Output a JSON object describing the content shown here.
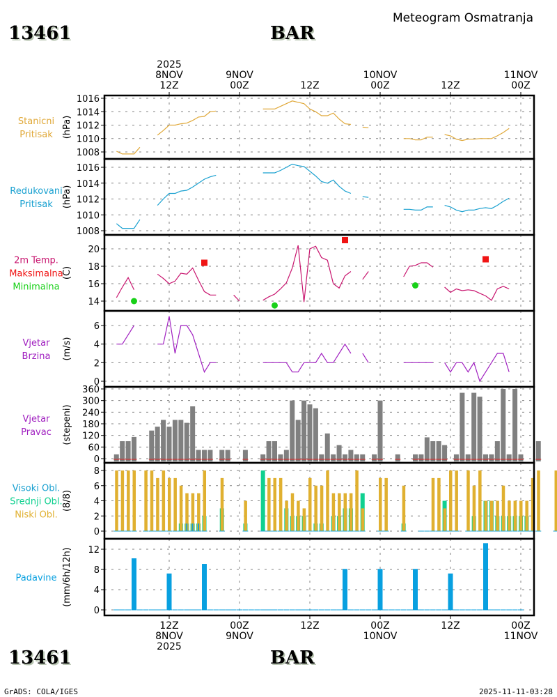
{
  "header": {
    "station_id": "13461",
    "station_name": "BAR",
    "title": "Meteogram Osmatranja"
  },
  "footer": {
    "station_id": "13461",
    "station_name": "BAR",
    "credit": "GrADS: COLA/IGES",
    "timestamp": "2025-11-11-03:28"
  },
  "time_axis": {
    "top_labels": [
      {
        "hour": 12,
        "lines": [
          "2025",
          "8NOV",
          "12Z"
        ]
      },
      {
        "hour": 24,
        "lines": [
          "9NOV",
          "00Z"
        ]
      },
      {
        "hour": 36,
        "lines": [
          "12Z"
        ]
      },
      {
        "hour": 48,
        "lines": [
          "10NOV",
          "00Z"
        ]
      },
      {
        "hour": 60,
        "lines": [
          "12Z"
        ]
      },
      {
        "hour": 72,
        "lines": [
          "11NOV",
          "00Z"
        ]
      }
    ],
    "bottom_labels": [
      {
        "hour": 12,
        "lines": [
          "12Z",
          "8NOV",
          "2025"
        ]
      },
      {
        "hour": 24,
        "lines": [
          "00Z",
          "9NOV"
        ]
      },
      {
        "hour": 36,
        "lines": [
          "12Z"
        ]
      },
      {
        "hour": 48,
        "lines": [
          "00Z",
          "10NOV"
        ]
      },
      {
        "hour": 60,
        "lines": [
          "12Z"
        ]
      },
      {
        "hour": 72,
        "lines": [
          "00Z",
          "11NOV"
        ]
      }
    ]
  },
  "colors": {
    "station_pressure": "#e0a838",
    "reduced_pressure": "#18a0d0",
    "temperature": "#c8146e",
    "tmax": "#f01414",
    "tmin": "#18d018",
    "wind_speed": "#a020c0",
    "wind_dir_bar": "#808080",
    "wind_dir_zero": "#e02020",
    "cloud_high": "#18a0d0",
    "cloud_mid": "#10d090",
    "cloud_low": "#e0b030",
    "precip": "#08a0e0"
  },
  "chart_data": [
    {
      "type": "line",
      "id": "station_pressure",
      "title_lines": [
        "Stanicni",
        "Pritisak"
      ],
      "ylabel": "(hPa)",
      "yticks": [
        1008,
        1010,
        1012,
        1014,
        1016
      ],
      "ylim": [
        1007.3,
        1016.5
      ],
      "x_hours_start": 3,
      "values": [
        1008.1,
        1007.7,
        1007.7,
        1007.7,
        1008.7,
        null,
        null,
        1010.5,
        1011.2,
        1012.0,
        1012.0,
        1012.2,
        1012.3,
        1012.7,
        1013.2,
        1013.3,
        1014.0,
        1014.1,
        null,
        null,
        1015.0,
        null,
        null,
        null,
        null,
        1014.4,
        1014.4,
        1014.4,
        1014.8,
        1015.2,
        1015.6,
        1015.4,
        1015.2,
        1014.4,
        1014.0,
        1013.4,
        1013.4,
        1013.8,
        1012.9,
        1012.2,
        1012.1,
        null,
        1011.7,
        1011.6,
        null,
        null,
        null,
        null,
        null,
        1010.0,
        1010.0,
        1009.8,
        1009.8,
        1010.2,
        1010.2,
        null,
        1010.6,
        1010.4,
        1009.9,
        1009.7,
        1009.9,
        1009.9,
        1010.0,
        1010.0,
        1010.0,
        1010.4,
        1010.9,
        1011.5
      ]
    },
    {
      "type": "line",
      "id": "reduced_pressure",
      "title_lines": [
        "Redukovani",
        "Pritisak"
      ],
      "ylabel": "(hPa)",
      "yticks": [
        1008,
        1010,
        1012,
        1014,
        1016
      ],
      "ylim": [
        1007.5,
        1016.8
      ],
      "x_hours_start": 3,
      "values": [
        1008.9,
        1008.3,
        1008.3,
        1008.3,
        1009.4,
        null,
        null,
        1011.2,
        1012.0,
        1012.7,
        1012.7,
        1013.0,
        1013.1,
        1013.5,
        1014.0,
        1014.5,
        1014.8,
        1015.0,
        null,
        null,
        1015.8,
        null,
        null,
        null,
        null,
        1015.3,
        1015.3,
        1015.3,
        1015.6,
        1016.0,
        1016.4,
        1016.2,
        1016.1,
        1015.5,
        1014.9,
        1014.2,
        1014.0,
        1014.4,
        1013.6,
        1013.0,
        1012.7,
        null,
        1012.3,
        1012.2,
        null,
        null,
        null,
        null,
        null,
        1010.7,
        1010.7,
        1010.6,
        1010.6,
        1011.0,
        1011.0,
        null,
        1011.2,
        1011.0,
        1010.6,
        1010.4,
        1010.6,
        1010.6,
        1010.8,
        1010.9,
        1010.8,
        1011.2,
        1011.7,
        1012.1
      ]
    },
    {
      "type": "line",
      "id": "temperature",
      "title_lines": [
        "2m Temp.",
        "Maksimalna",
        "Minimalna"
      ],
      "ylabel": "(C)",
      "yticks": [
        14,
        16,
        18,
        20
      ],
      "ylim": [
        13.0,
        21.5
      ],
      "x_hours_start": 3,
      "values": [
        14.4,
        15.6,
        16.7,
        15.3,
        null,
        null,
        null,
        17.1,
        16.6,
        16.0,
        16.3,
        17.2,
        17.1,
        17.8,
        16.4,
        15.1,
        14.7,
        14.7,
        null,
        null,
        14.7,
        14.0,
        null,
        null,
        null,
        14.1,
        14.5,
        14.8,
        15.4,
        16.1,
        17.8,
        20.4,
        13.9,
        20.0,
        20.3,
        19.0,
        18.7,
        16.0,
        15.5,
        16.9,
        17.4,
        null,
        16.5,
        17.4,
        null,
        null,
        null,
        null,
        null,
        16.8,
        18.0,
        18.1,
        18.4,
        18.4,
        17.9,
        null,
        15.6,
        15.0,
        15.4,
        15.2,
        15.3,
        15.2,
        14.9,
        14.6,
        14.1,
        15.4,
        15.7,
        15.4
      ],
      "tmax_points": [
        {
          "hour": 18,
          "value": 18.4
        },
        {
          "hour": 42,
          "value": 21.0
        },
        {
          "hour": 66,
          "value": 18.8
        }
      ],
      "tmin_points": [
        {
          "hour": 6,
          "value": 14.0
        },
        {
          "hour": 30,
          "value": 13.5
        },
        {
          "hour": 54,
          "value": 15.8
        }
      ]
    },
    {
      "type": "line",
      "id": "wind_speed",
      "title_lines": [
        "Vjetar",
        "Brzina"
      ],
      "ylabel": "(m/s)",
      "yticks": [
        0,
        2,
        4,
        6
      ],
      "ylim": [
        0,
        7.3
      ],
      "x_hours_start": 3,
      "values": [
        4,
        4,
        5,
        6,
        null,
        null,
        null,
        4,
        4,
        7,
        3,
        6,
        6,
        5,
        3,
        1,
        2,
        2,
        null,
        null,
        2,
        null,
        null,
        null,
        null,
        2,
        2,
        2,
        2,
        2,
        1,
        1,
        2,
        2,
        2,
        3,
        2,
        2,
        3,
        4,
        3,
        null,
        3,
        2,
        null,
        null,
        null,
        null,
        null,
        2,
        2,
        2,
        2,
        2,
        2,
        null,
        2,
        1,
        2,
        2,
        1,
        2,
        0,
        1,
        2,
        3,
        3,
        1
      ]
    },
    {
      "type": "bar",
      "id": "wind_direction",
      "title_lines": [
        "Vjetar",
        "Pravac"
      ],
      "ylabel": "(stepeni)",
      "yticks": [
        0,
        60,
        120,
        180,
        240,
        300,
        360
      ],
      "ylim": [
        0,
        360
      ],
      "x_hours_start": 3,
      "values": [
        22,
        90,
        90,
        112,
        null,
        null,
        145,
        165,
        200,
        165,
        200,
        200,
        185,
        270,
        45,
        45,
        45,
        null,
        45,
        45,
        null,
        null,
        45,
        null,
        null,
        22,
        90,
        90,
        22,
        45,
        300,
        200,
        300,
        280,
        260,
        22,
        130,
        22,
        70,
        22,
        45,
        22,
        22,
        null,
        22,
        300,
        null,
        null,
        22,
        null,
        null,
        22,
        22,
        110,
        90,
        90,
        70,
        null,
        22,
        340,
        22,
        340,
        320,
        22,
        22,
        90,
        360,
        22,
        360,
        22,
        null,
        null,
        90
      ]
    },
    {
      "type": "bar",
      "id": "clouds",
      "title_lines": [
        "Visoki Obl.",
        "Srednji Obl.",
        "Niski Obl."
      ],
      "ylabel": "(8/8)",
      "yticks": [
        0,
        2,
        4,
        6,
        8
      ],
      "ylim": [
        0,
        8.3
      ],
      "x_hours_start": 3,
      "low": [
        8,
        8,
        8,
        8,
        null,
        8,
        8,
        7,
        8,
        7,
        7,
        6,
        5,
        5,
        5,
        8,
        null,
        null,
        7,
        null,
        null,
        null,
        4,
        null,
        null,
        0,
        7,
        7,
        7,
        4,
        5,
        4,
        3,
        7,
        6,
        6,
        8,
        5,
        5,
        5,
        5,
        8,
        3,
        null,
        null,
        7,
        7,
        null,
        null,
        6,
        null,
        null,
        0,
        0,
        7,
        7,
        3,
        8,
        8,
        null,
        8,
        6,
        8,
        4,
        4,
        4,
        6,
        4,
        4,
        4,
        4,
        7,
        8,
        null,
        null,
        8
      ],
      "mid": [
        0,
        0,
        0,
        0,
        null,
        0,
        0,
        0,
        0,
        0,
        0,
        1,
        1,
        1,
        1,
        2,
        null,
        null,
        3,
        null,
        null,
        null,
        1,
        null,
        null,
        8,
        0,
        0,
        0,
        3,
        2,
        2,
        2,
        0,
        1,
        1,
        0,
        2,
        2,
        3,
        3,
        0,
        5,
        null,
        null,
        0,
        0,
        null,
        null,
        1,
        null,
        null,
        0,
        0,
        0,
        0,
        4,
        0,
        0,
        null,
        0,
        2,
        0,
        4,
        4,
        2,
        2,
        2,
        2,
        2,
        2,
        0,
        0,
        null,
        null,
        0
      ],
      "high": [
        0,
        0,
        0,
        0,
        null,
        0,
        0,
        0,
        0,
        0,
        0,
        0,
        1,
        1,
        1,
        0,
        null,
        null,
        0,
        null,
        null,
        null,
        0,
        null,
        null,
        0,
        0,
        0,
        0,
        0,
        0,
        0,
        0,
        0,
        0,
        0,
        0,
        0,
        0,
        0,
        0,
        0,
        0,
        null,
        null,
        0,
        0,
        null,
        null,
        0,
        null,
        null,
        0,
        0,
        0,
        0,
        0,
        0,
        0,
        null,
        0,
        0,
        0,
        0,
        0,
        0,
        0,
        0,
        0,
        0,
        0,
        0,
        0,
        null,
        null,
        0
      ]
    },
    {
      "type": "bar",
      "id": "precipitation",
      "title_lines": [
        "Padavine"
      ],
      "ylabel": "(mm/6h/12h)",
      "yticks": [
        0,
        4,
        8,
        12
      ],
      "ylim": [
        0,
        13.8
      ],
      "bars": [
        {
          "hour": 6,
          "value": 10.2
        },
        {
          "hour": 12,
          "value": 7.2
        },
        {
          "hour": 18,
          "value": 9.1
        },
        {
          "hour": 42,
          "value": 8.1
        },
        {
          "hour": 48,
          "value": 8.1
        },
        {
          "hour": 54,
          "value": 8.1
        },
        {
          "hour": 60,
          "value": 7.2
        },
        {
          "hour": 66,
          "value": 13.2
        }
      ]
    }
  ]
}
